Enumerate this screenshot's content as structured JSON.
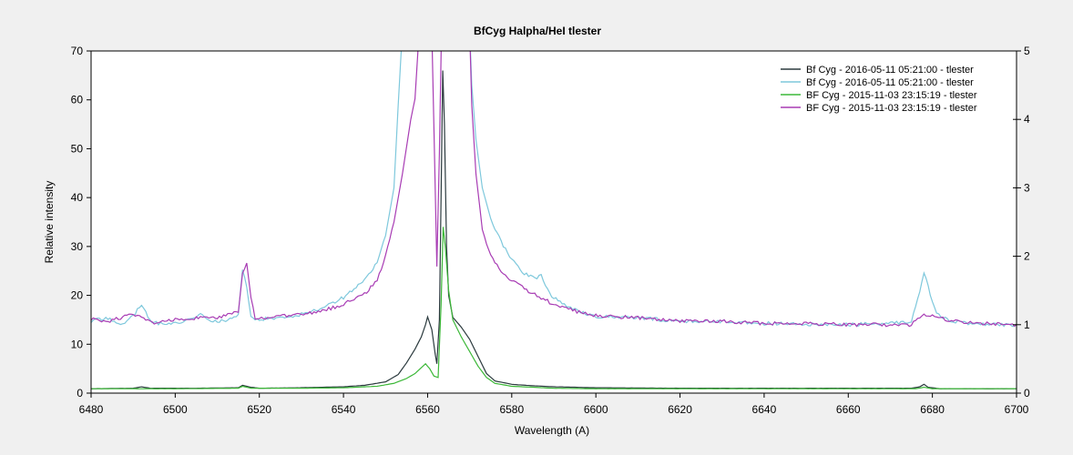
{
  "chart_data": {
    "type": "line",
    "title": "BfCyg  Halpha/HeI  tlester",
    "xlabel": "Wavelength (A)",
    "ylabel": "Relative intensity",
    "xlim": [
      6480,
      6700
    ],
    "ylim": [
      0,
      70
    ],
    "y2lim": [
      0,
      5
    ],
    "x_ticks": [
      6480,
      6500,
      6520,
      6540,
      6560,
      6580,
      6600,
      6620,
      6640,
      6660,
      6680,
      6700
    ],
    "y_ticks": [
      0,
      10,
      20,
      30,
      40,
      50,
      60,
      70
    ],
    "y2_ticks": [
      0,
      1,
      2,
      3,
      4,
      5
    ],
    "grid": false,
    "legend_position": "top-right",
    "series": [
      {
        "name": "Bf Cyg - 2016-05-11  05:21:00 - tlester",
        "color": "#2b3a3e",
        "axis": "left",
        "points": [
          [
            6480,
            0.9
          ],
          [
            6490,
            1.0
          ],
          [
            6492,
            1.3
          ],
          [
            6494,
            1.0
          ],
          [
            6505,
            1.0
          ],
          [
            6515,
            1.1
          ],
          [
            6516,
            1.6
          ],
          [
            6518,
            1.2
          ],
          [
            6520,
            1.0
          ],
          [
            6530,
            1.1
          ],
          [
            6540,
            1.3
          ],
          [
            6545,
            1.6
          ],
          [
            6550,
            2.3
          ],
          [
            6553,
            3.8
          ],
          [
            6555,
            6.2
          ],
          [
            6557,
            9.0
          ],
          [
            6558.5,
            11.5
          ],
          [
            6559.5,
            14.0
          ],
          [
            6560,
            15.6
          ],
          [
            6561,
            13.0
          ],
          [
            6561.8,
            8.0
          ],
          [
            6562.2,
            6.0
          ],
          [
            6562.8,
            15.0
          ],
          [
            6563.2,
            40.0
          ],
          [
            6563.6,
            66.0
          ],
          [
            6564,
            55.0
          ],
          [
            6564.5,
            30.0
          ],
          [
            6565,
            20.0
          ],
          [
            6566,
            15.5
          ],
          [
            6568,
            13.5
          ],
          [
            6570,
            11.0
          ],
          [
            6572,
            7.5
          ],
          [
            6574,
            4.0
          ],
          [
            6576,
            2.5
          ],
          [
            6580,
            1.8
          ],
          [
            6585,
            1.5
          ],
          [
            6590,
            1.3
          ],
          [
            6600,
            1.1
          ],
          [
            6620,
            1.0
          ],
          [
            6640,
            1.0
          ],
          [
            6660,
            1.0
          ],
          [
            6675,
            1.0
          ],
          [
            6677,
            1.3
          ],
          [
            6678,
            1.8
          ],
          [
            6679,
            1.2
          ],
          [
            6682,
            0.9
          ],
          [
            6700,
            0.9
          ]
        ]
      },
      {
        "name": "Bf Cyg - 2016-05-11  05:21:00 - tlester",
        "color": "#7ec8dc",
        "axis": "right",
        "points": [
          [
            6480,
            1.05
          ],
          [
            6484,
            1.1
          ],
          [
            6488,
            1.0
          ],
          [
            6490,
            1.13
          ],
          [
            6492,
            1.3
          ],
          [
            6494,
            1.05
          ],
          [
            6498,
            1.0
          ],
          [
            6502,
            1.05
          ],
          [
            6506,
            1.15
          ],
          [
            6508,
            1.05
          ],
          [
            6512,
            1.05
          ],
          [
            6515,
            1.15
          ],
          [
            6516,
            1.82
          ],
          [
            6517,
            1.55
          ],
          [
            6518,
            1.1
          ],
          [
            6520,
            1.08
          ],
          [
            6525,
            1.1
          ],
          [
            6530,
            1.15
          ],
          [
            6535,
            1.25
          ],
          [
            6540,
            1.4
          ],
          [
            6545,
            1.65
          ],
          [
            6548,
            1.9
          ],
          [
            6550,
            2.3
          ],
          [
            6552,
            3.0
          ],
          [
            6553,
            4.2
          ],
          [
            6554,
            5.3
          ],
          [
            6555,
            5.2
          ],
          [
            6556,
            5.3
          ],
          [
            6560,
            5.3
          ],
          [
            6566,
            5.3
          ],
          [
            6570,
            5.3
          ],
          [
            6570.5,
            4.5
          ],
          [
            6571.5,
            3.7
          ],
          [
            6573,
            3.0
          ],
          [
            6575,
            2.55
          ],
          [
            6578,
            2.15
          ],
          [
            6580,
            1.95
          ],
          [
            6583,
            1.75
          ],
          [
            6586,
            1.68
          ],
          [
            6587,
            1.72
          ],
          [
            6589,
            1.45
          ],
          [
            6592,
            1.3
          ],
          [
            6596,
            1.2
          ],
          [
            6600,
            1.12
          ],
          [
            6610,
            1.1
          ],
          [
            6620,
            1.05
          ],
          [
            6630,
            1.05
          ],
          [
            6640,
            1.02
          ],
          [
            6650,
            1.0
          ],
          [
            6660,
            1.0
          ],
          [
            6670,
            1.02
          ],
          [
            6675,
            1.05
          ],
          [
            6677,
            1.5
          ],
          [
            6678,
            1.78
          ],
          [
            6679,
            1.55
          ],
          [
            6681,
            1.15
          ],
          [
            6685,
            1.05
          ],
          [
            6690,
            1.0
          ],
          [
            6700,
            1.0
          ]
        ]
      },
      {
        "name": "BF Cyg - 2015-11-03  23:15:19 - tlester",
        "color": "#3cb838",
        "axis": "left",
        "points": [
          [
            6480,
            0.9
          ],
          [
            6500,
            0.9
          ],
          [
            6515,
            1.0
          ],
          [
            6516,
            1.4
          ],
          [
            6518,
            1.0
          ],
          [
            6530,
            1.0
          ],
          [
            6540,
            1.1
          ],
          [
            6548,
            1.4
          ],
          [
            6552,
            2.0
          ],
          [
            6555,
            3.0
          ],
          [
            6557,
            4.0
          ],
          [
            6558.5,
            5.2
          ],
          [
            6559.5,
            6.0
          ],
          [
            6560.5,
            5.0
          ],
          [
            6561.5,
            3.5
          ],
          [
            6562.5,
            3.2
          ],
          [
            6563.2,
            18.0
          ],
          [
            6563.7,
            34.0
          ],
          [
            6564.2,
            30.0
          ],
          [
            6565,
            21.0
          ],
          [
            6566,
            15.0
          ],
          [
            6568,
            11.5
          ],
          [
            6570,
            8.5
          ],
          [
            6572,
            5.5
          ],
          [
            6574,
            3.2
          ],
          [
            6576,
            2.0
          ],
          [
            6580,
            1.4
          ],
          [
            6590,
            1.0
          ],
          [
            6600,
            0.9
          ],
          [
            6640,
            0.9
          ],
          [
            6676,
            0.9
          ],
          [
            6678,
            1.2
          ],
          [
            6680,
            0.9
          ],
          [
            6700,
            0.9
          ]
        ]
      },
      {
        "name": "BF Cyg - 2015-11-03  23:15:19 - tlester",
        "color": "#a83cb4",
        "axis": "right",
        "points": [
          [
            6480,
            1.08
          ],
          [
            6484,
            1.05
          ],
          [
            6490,
            1.15
          ],
          [
            6495,
            1.02
          ],
          [
            6500,
            1.08
          ],
          [
            6505,
            1.1
          ],
          [
            6510,
            1.1
          ],
          [
            6515,
            1.18
          ],
          [
            6516,
            1.75
          ],
          [
            6517,
            1.9
          ],
          [
            6518,
            1.4
          ],
          [
            6519,
            1.1
          ],
          [
            6522,
            1.1
          ],
          [
            6530,
            1.15
          ],
          [
            6535,
            1.2
          ],
          [
            6540,
            1.3
          ],
          [
            6545,
            1.45
          ],
          [
            6548,
            1.65
          ],
          [
            6550,
            2.0
          ],
          [
            6552,
            2.5
          ],
          [
            6554,
            3.2
          ],
          [
            6556,
            4.0
          ],
          [
            6557,
            4.3
          ],
          [
            6558,
            5.3
          ],
          [
            6559,
            5.3
          ],
          [
            6560,
            5.3
          ],
          [
            6561,
            5.3
          ],
          [
            6561.6,
            3.6
          ],
          [
            6562.2,
            1.85
          ],
          [
            6562.8,
            3.5
          ],
          [
            6563.3,
            5.3
          ],
          [
            6570,
            5.3
          ],
          [
            6570.5,
            4.2
          ],
          [
            6571.5,
            3.2
          ],
          [
            6573,
            2.4
          ],
          [
            6575,
            2.0
          ],
          [
            6578,
            1.75
          ],
          [
            6580,
            1.65
          ],
          [
            6585,
            1.45
          ],
          [
            6590,
            1.3
          ],
          [
            6595,
            1.2
          ],
          [
            6600,
            1.13
          ],
          [
            6610,
            1.1
          ],
          [
            6620,
            1.05
          ],
          [
            6630,
            1.05
          ],
          [
            6640,
            1.02
          ],
          [
            6650,
            1.02
          ],
          [
            6660,
            1.0
          ],
          [
            6670,
            1.0
          ],
          [
            6675,
            1.0
          ],
          [
            6678,
            1.15
          ],
          [
            6680,
            1.12
          ],
          [
            6685,
            1.05
          ],
          [
            6690,
            1.02
          ],
          [
            6700,
            1.0
          ]
        ]
      }
    ]
  }
}
